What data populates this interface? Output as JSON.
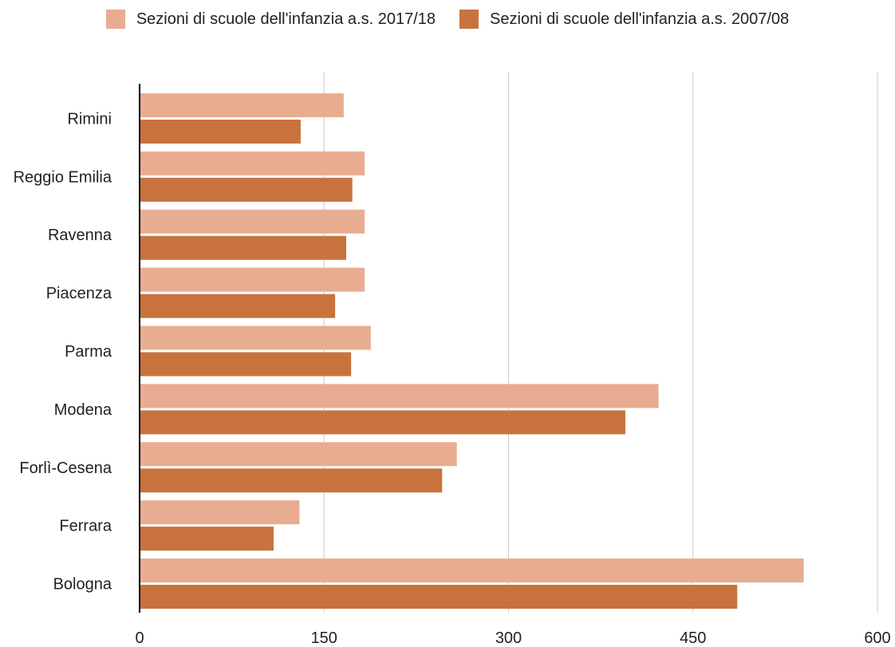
{
  "chart_data": {
    "type": "bar",
    "orientation": "horizontal",
    "categories": [
      "Rimini",
      "Reggio Emilia",
      "Ravenna",
      "Piacenza",
      "Parma",
      "Modena",
      "Forlì-Cesena",
      "Ferrara",
      "Bologna"
    ],
    "series": [
      {
        "name": "Sezioni di scuole dell'infanzia a.s. 2017/18",
        "color": "#E8AD90",
        "values": [
          166,
          183,
          183,
          183,
          188,
          422,
          258,
          130,
          540
        ]
      },
      {
        "name": "Sezioni di scuole dell'infanzia a.s. 2007/08",
        "color": "#C8733D",
        "values": [
          131,
          173,
          168,
          159,
          172,
          395,
          246,
          109,
          486
        ]
      }
    ],
    "xlim": [
      0,
      600
    ],
    "xticks": [
      0,
      150,
      300,
      450,
      600
    ],
    "grid": true,
    "legend_position": "top-center"
  }
}
